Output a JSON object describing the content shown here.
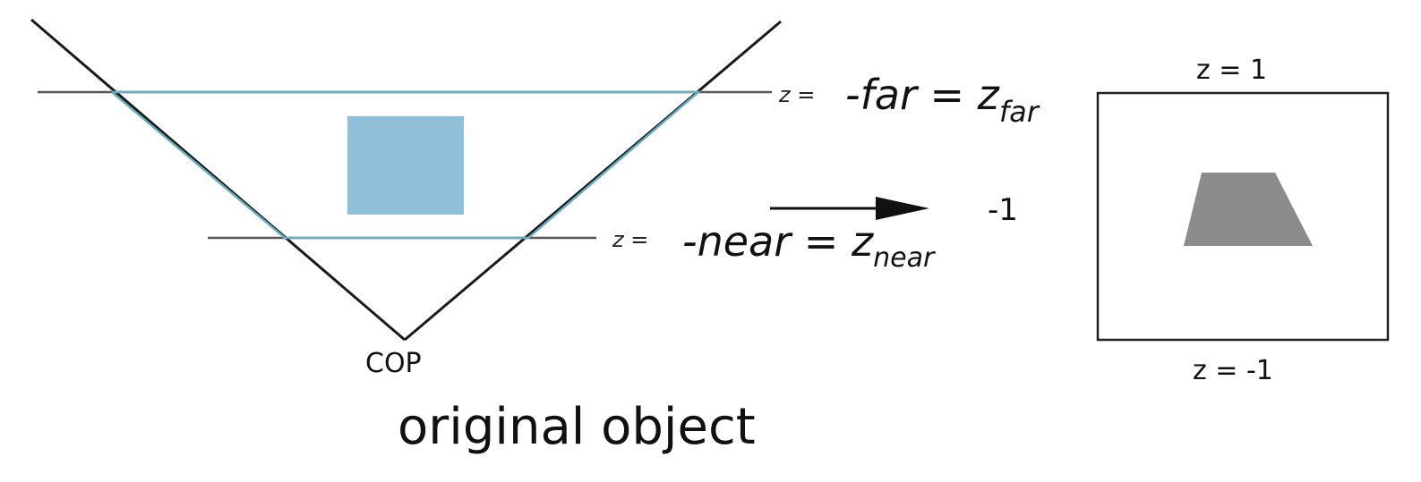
{
  "diagram": {
    "far_plane": {
      "z_prefix": "z =",
      "expr_main": "-far = z",
      "expr_sub": "far"
    },
    "near_plane": {
      "z_prefix": "z =",
      "expr_main": "-near = z",
      "expr_sub": "near"
    },
    "apex_label": "COP",
    "caption": "original object",
    "arrow_value": "-1",
    "ndc_box": {
      "top_label": "z = 1",
      "bottom_label": "z = -1"
    },
    "colors": {
      "frustum_line": "#1a1a1a",
      "clip_volume_line": "#6aaec0",
      "object_fill": "#8fbfd9",
      "projected_fill": "#8c8c8c",
      "box_stroke": "#222222"
    }
  }
}
